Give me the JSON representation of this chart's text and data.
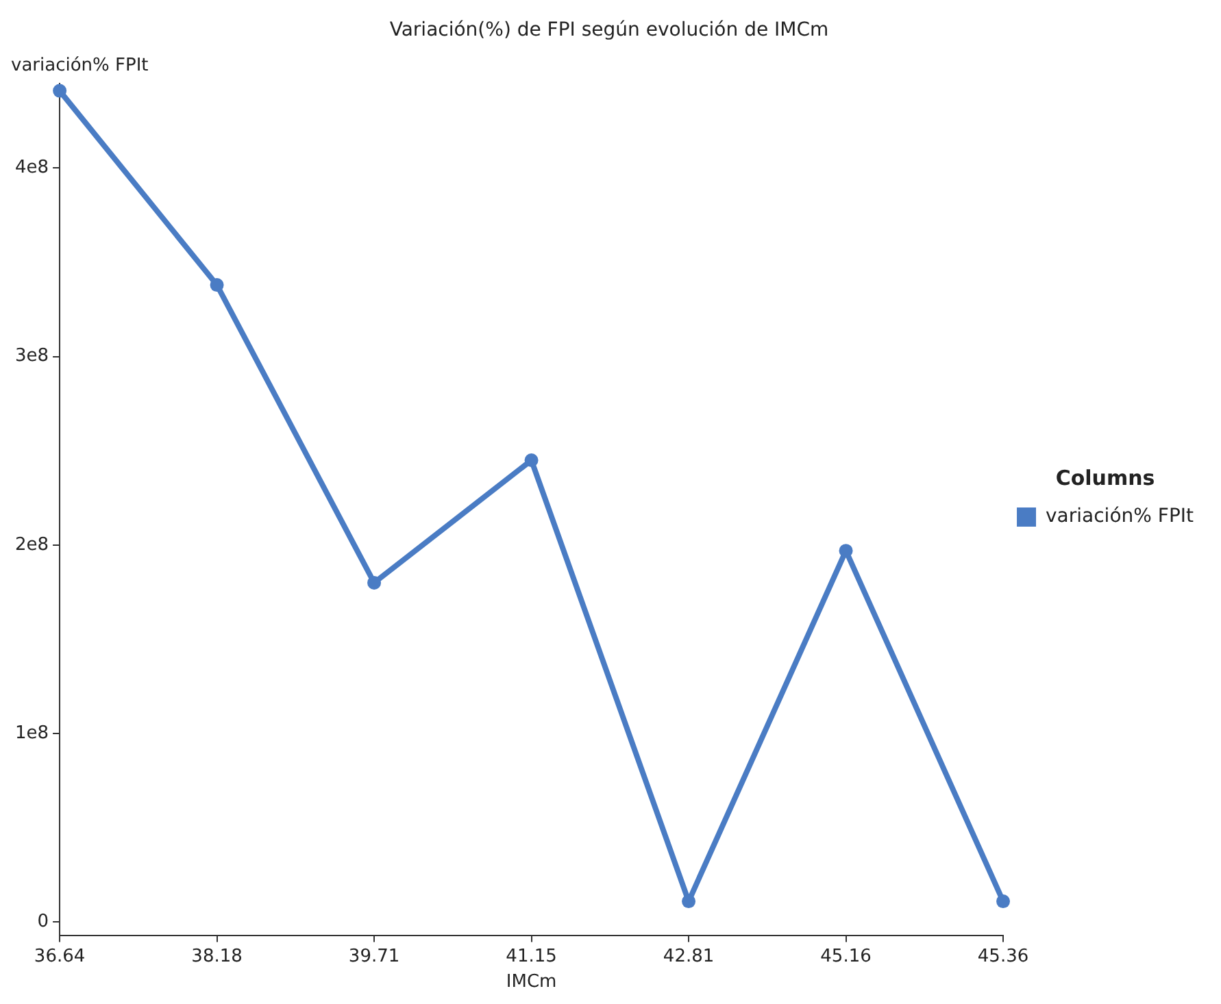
{
  "chart_data": {
    "type": "line",
    "title": "Variación(%) de FPI según evolución de IMCm",
    "xlabel": "IMCm",
    "ylabel": "variación% FPIt",
    "legend_title": "Columns",
    "legend": "right",
    "categories": [
      "36.64",
      "38.18",
      "39.71",
      "41.15",
      "42.81",
      "45.16",
      "45.36"
    ],
    "series": [
      {
        "name": "variación% FPIt",
        "color": "#4a7cc4",
        "values": [
          441000000,
          338000000,
          180000000,
          245000000,
          11000000,
          197000000,
          11000000
        ]
      }
    ],
    "ylim": [
      -7000000,
      445000000
    ],
    "yticks": [
      0,
      {
        "value": 100000000,
        "label": "1e8"
      },
      {
        "value": 200000000,
        "label": "2e8"
      },
      {
        "value": 300000000,
        "label": "3e8"
      },
      {
        "value": 400000000,
        "label": "4e8"
      }
    ],
    "grid": false,
    "marker": "circle",
    "line_style": "solid"
  }
}
